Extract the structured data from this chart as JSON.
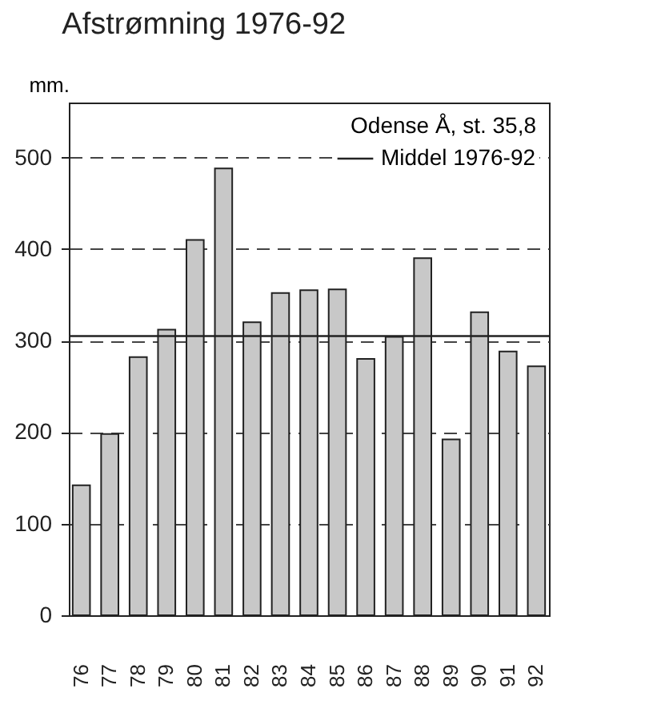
{
  "chart_data": {
    "type": "bar",
    "title": "Afstrømning 1976-92",
    "ylabel": "mm.",
    "legend_title": "Odense Å, st. 35,8",
    "categories": [
      "76",
      "77",
      "78",
      "79",
      "80",
      "81",
      "82",
      "83",
      "84",
      "85",
      "86",
      "87",
      "88",
      "89",
      "90",
      "91",
      "92"
    ],
    "values": [
      142,
      198,
      282,
      312,
      410,
      488,
      320,
      352,
      355,
      356,
      280,
      304,
      390,
      192,
      331,
      288,
      272
    ],
    "color": "#c8c8c8",
    "ylim": [
      0,
      560
    ],
    "yticks": [
      0,
      100,
      200,
      300,
      400,
      500
    ],
    "grid": "y",
    "legend": "top right",
    "ref_lines": [
      {
        "axis": "y",
        "value": 305,
        "label": "Middel 1976-92",
        "color": "#222222",
        "line_style": "solid"
      }
    ]
  }
}
